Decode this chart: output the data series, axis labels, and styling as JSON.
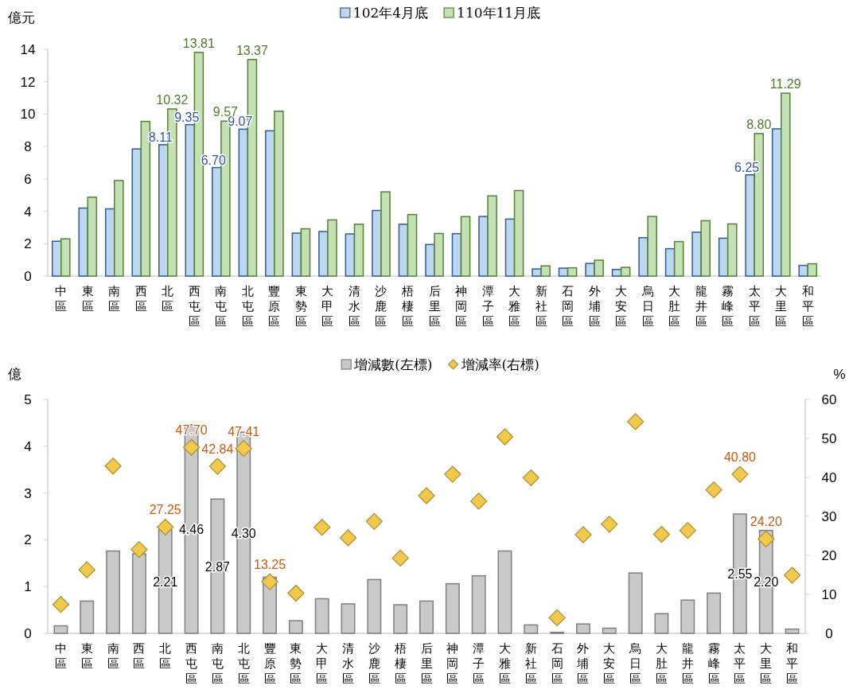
{
  "chart_data": [
    {
      "type": "bar",
      "ylabel": "億元",
      "categories": [
        "中區",
        "東區",
        "南區",
        "西區",
        "北區",
        "西屯區",
        "南屯區",
        "北屯區",
        "豐原區",
        "東勢區",
        "大甲區",
        "清水區",
        "沙鹿區",
        "梧棲區",
        "后里區",
        "神岡區",
        "潭子區",
        "大雅區",
        "新社區",
        "石岡區",
        "外埔區",
        "大安區",
        "烏日區",
        "大肚區",
        "龍井區",
        "霧峰區",
        "太平區",
        "大里區",
        "和平區"
      ],
      "ylim": [
        0,
        14
      ],
      "yticks": [
        0,
        2,
        4,
        6,
        8,
        10,
        12,
        14
      ],
      "legend": "top",
      "series": [
        {
          "name": "102年4月底",
          "color": "#bdd7ee",
          "values": [
            2.15,
            4.2,
            4.15,
            7.85,
            8.11,
            9.35,
            6.7,
            9.07,
            8.97,
            2.65,
            2.75,
            2.6,
            4.05,
            3.2,
            1.95,
            2.62,
            3.68,
            3.52,
            0.44,
            0.49,
            0.78,
            0.41,
            2.37,
            1.69,
            2.71,
            2.34,
            6.25,
            9.09,
            0.66
          ],
          "value_labels": [
            null,
            null,
            null,
            null,
            "8.11",
            "9.35",
            "6.70",
            "9.07",
            null,
            null,
            null,
            null,
            null,
            null,
            null,
            null,
            null,
            null,
            null,
            null,
            null,
            null,
            null,
            null,
            null,
            null,
            "6.25",
            null,
            null
          ]
        },
        {
          "name": "110年11月底",
          "color": "#c5e0b4",
          "values": [
            2.3,
            4.87,
            5.9,
            9.55,
            10.32,
            13.81,
            9.57,
            13.37,
            10.18,
            2.92,
            3.47,
            3.2,
            5.2,
            3.8,
            2.63,
            3.67,
            4.95,
            5.28,
            0.63,
            0.51,
            0.98,
            0.54,
            3.68,
            2.13,
            3.42,
            3.22,
            8.8,
            11.29,
            0.76
          ],
          "value_labels": [
            null,
            null,
            null,
            null,
            "10.32",
            "13.81",
            "9.57",
            "13.37",
            null,
            null,
            null,
            null,
            null,
            null,
            null,
            null,
            null,
            null,
            null,
            null,
            null,
            null,
            null,
            null,
            null,
            null,
            "8.80",
            "11.29",
            null
          ]
        }
      ]
    },
    {
      "type": "bar",
      "ylabel": "億",
      "y2label": "%",
      "categories": [
        "中區",
        "東區",
        "南區",
        "西區",
        "北區",
        "西屯區",
        "南屯區",
        "北屯區",
        "豐原區",
        "東勢區",
        "大甲區",
        "清水區",
        "沙鹿區",
        "梧棲區",
        "后里區",
        "神岡區",
        "潭子區",
        "大雅區",
        "新社區",
        "石岡區",
        "外埔區",
        "大安區",
        "烏日區",
        "大肚區",
        "龍井區",
        "霧峰區",
        "太平區",
        "大里區",
        "和平區"
      ],
      "ylim": [
        0,
        5
      ],
      "yticks": [
        0,
        1,
        2,
        3,
        4,
        5
      ],
      "y2lim": [
        0,
        60
      ],
      "y2ticks": [
        0,
        10,
        20,
        30,
        40,
        50,
        60
      ],
      "legend": "top",
      "series": [
        {
          "name": "增減數(左標)",
          "color": "#c9c9c9",
          "values": [
            0.16,
            0.69,
            1.76,
            1.7,
            2.21,
            4.46,
            2.87,
            4.3,
            1.2,
            0.27,
            0.74,
            0.63,
            1.15,
            0.61,
            0.69,
            1.06,
            1.23,
            1.76,
            0.18,
            0.02,
            0.2,
            0.11,
            1.29,
            0.42,
            0.71,
            0.86,
            2.55,
            2.2,
            0.09
          ],
          "value_labels": [
            null,
            null,
            null,
            null,
            "2.21",
            "4.46",
            "2.87",
            "4.30",
            null,
            null,
            null,
            null,
            null,
            null,
            null,
            null,
            null,
            null,
            null,
            null,
            null,
            null,
            null,
            null,
            null,
            null,
            "2.55",
            "2.20",
            null
          ]
        },
        {
          "name": "增減率(右標)",
          "type": "scatter",
          "axis": "y2",
          "marker": "diamond",
          "color": "#f2c94c",
          "values": [
            7.4,
            16.3,
            42.9,
            21.5,
            27.25,
            47.7,
            42.84,
            47.41,
            13.25,
            10.3,
            27.2,
            24.5,
            28.7,
            19.3,
            35.3,
            40.8,
            33.9,
            50.4,
            39.9,
            4.0,
            25.3,
            28.0,
            54.3,
            25.4,
            26.4,
            36.8,
            40.8,
            24.2,
            14.9
          ],
          "value_labels": [
            null,
            null,
            null,
            null,
            "27.25",
            "47.70",
            "42.84",
            "47.41",
            "13.25",
            null,
            null,
            null,
            null,
            null,
            null,
            null,
            null,
            null,
            null,
            null,
            null,
            null,
            null,
            null,
            null,
            null,
            "40.80",
            "24.20",
            null
          ]
        }
      ]
    }
  ]
}
